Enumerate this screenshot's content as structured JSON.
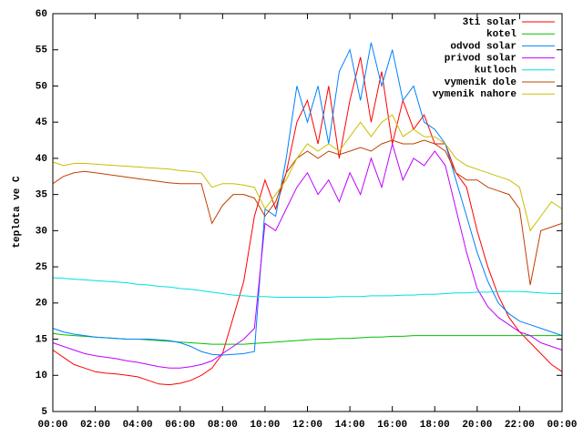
{
  "chart_data": {
    "type": "line",
    "ylabel": "teplota ve C",
    "xlim": [
      0,
      24
    ],
    "xticks": [
      {
        "value": 0,
        "label": "00:00"
      },
      {
        "value": 2,
        "label": "02:00"
      },
      {
        "value": 4,
        "label": "04:00"
      },
      {
        "value": 6,
        "label": "06:00"
      },
      {
        "value": 8,
        "label": "08:00"
      },
      {
        "value": 10,
        "label": "10:00"
      },
      {
        "value": 12,
        "label": "12:00"
      },
      {
        "value": 14,
        "label": "14:00"
      },
      {
        "value": 16,
        "label": "16:00"
      },
      {
        "value": 18,
        "label": "18:00"
      },
      {
        "value": 20,
        "label": "20:00"
      },
      {
        "value": 22,
        "label": "22:00"
      },
      {
        "value": 24,
        "label": "00:00"
      }
    ],
    "ylim": [
      5,
      60
    ],
    "yticks": [
      5,
      10,
      15,
      20,
      25,
      30,
      35,
      40,
      45,
      50,
      55,
      60
    ],
    "legend": "top-right",
    "x": [
      0,
      0.5,
      1,
      1.5,
      2,
      2.5,
      3,
      3.5,
      4,
      4.5,
      5,
      5.5,
      6,
      6.5,
      7,
      7.5,
      8,
      8.5,
      9,
      9.5,
      10,
      10.5,
      11,
      11.5,
      12,
      12.5,
      13,
      13.5,
      14,
      14.5,
      15,
      15.5,
      16,
      16.5,
      17,
      17.5,
      18,
      18.5,
      19,
      19.5,
      20,
      20.5,
      21,
      21.5,
      22,
      22.5,
      23,
      23.5,
      24
    ],
    "series": [
      {
        "name": "3ti solar",
        "color": "#ff0000",
        "values": [
          13.5,
          12.5,
          11.5,
          11,
          10.5,
          10.3,
          10.2,
          10,
          9.8,
          9.3,
          8.8,
          8.7,
          8.9,
          9.3,
          10,
          11,
          13,
          18,
          23,
          32,
          37,
          33,
          38,
          45,
          48,
          42,
          50,
          40,
          48,
          54,
          45,
          52,
          42,
          48,
          44,
          46,
          42,
          42,
          38,
          36,
          30,
          25,
          21,
          18,
          16,
          14.5,
          13,
          11.5,
          10.5
        ]
      },
      {
        "name": "kotel",
        "color": "#00c000",
        "values": [
          15.8,
          15.6,
          15.5,
          15.4,
          15.3,
          15.2,
          15.1,
          15,
          15,
          14.9,
          14.8,
          14.7,
          14.6,
          14.5,
          14.4,
          14.3,
          14.3,
          14.3,
          14.3,
          14.4,
          14.5,
          14.6,
          14.7,
          14.8,
          14.9,
          15,
          15,
          15.1,
          15.1,
          15.2,
          15.3,
          15.3,
          15.4,
          15.4,
          15.5,
          15.5,
          15.5,
          15.5,
          15.5,
          15.5,
          15.5,
          15.5,
          15.5,
          15.5,
          15.5,
          15.5,
          15.5,
          15.5,
          15.5
        ]
      },
      {
        "name": "odvod solar",
        "color": "#0080ff",
        "values": [
          16.5,
          16,
          15.7,
          15.5,
          15.3,
          15.2,
          15.1,
          15,
          15,
          15,
          14.9,
          14.8,
          14.5,
          14,
          13.3,
          12.9,
          12.8,
          12.9,
          13,
          13.3,
          33,
          32,
          40,
          50,
          45,
          50,
          42,
          52,
          55,
          48,
          56,
          50,
          55,
          48,
          50,
          45,
          44,
          42,
          37,
          32,
          27,
          23,
          20,
          18.5,
          17.5,
          17,
          16.5,
          16,
          15.5
        ]
      },
      {
        "name": "privod solar",
        "color": "#c000ff",
        "values": [
          14.5,
          14,
          13.5,
          13,
          12.7,
          12.5,
          12.3,
          12,
          11.8,
          11.5,
          11.2,
          11,
          11,
          11.2,
          11.5,
          12,
          13,
          14,
          15,
          16.5,
          31,
          30,
          33,
          36,
          38,
          35,
          37,
          34,
          38,
          35,
          40,
          36,
          42,
          37,
          40,
          39,
          41,
          39,
          33,
          27,
          22,
          19.5,
          18,
          17,
          16,
          15.5,
          14.5,
          14,
          13.5
        ]
      },
      {
        "name": "kutloch",
        "color": "#00e0e0",
        "values": [
          23.5,
          23.4,
          23.3,
          23.2,
          23.1,
          23,
          22.9,
          22.8,
          22.6,
          22.5,
          22.3,
          22.2,
          22,
          21.9,
          21.7,
          21.5,
          21.3,
          21.1,
          21,
          20.9,
          20.9,
          20.8,
          20.8,
          20.8,
          20.8,
          20.8,
          20.8,
          20.9,
          20.9,
          20.9,
          21,
          21,
          21,
          21.1,
          21.1,
          21.2,
          21.2,
          21.3,
          21.4,
          21.4,
          21.5,
          21.5,
          21.6,
          21.6,
          21.6,
          21.5,
          21.4,
          21.3,
          21.3
        ]
      },
      {
        "name": "vymenik dole",
        "color": "#c04000",
        "values": [
          36.5,
          37.5,
          38,
          38.2,
          38,
          37.8,
          37.6,
          37.4,
          37.2,
          37,
          36.8,
          36.6,
          36.5,
          36.5,
          36.5,
          31,
          33.5,
          35,
          35,
          34.5,
          32,
          34,
          38,
          40,
          41,
          40,
          41,
          40.5,
          41,
          41.5,
          41,
          42,
          42.5,
          42,
          42,
          42.5,
          42,
          41,
          38,
          37,
          37,
          36,
          35.5,
          35,
          33,
          22.5,
          30,
          30.5,
          31
        ]
      },
      {
        "name": "vymenik nahore",
        "color": "#c8c000",
        "values": [
          39.5,
          39,
          39.3,
          39.3,
          39.2,
          39.1,
          39,
          38.9,
          38.8,
          38.7,
          38.6,
          38.5,
          38.3,
          38.2,
          38,
          36,
          36.5,
          36.5,
          36.3,
          36,
          33,
          35,
          37,
          40,
          42,
          41,
          42,
          41,
          43,
          45,
          43,
          45,
          46,
          43,
          44,
          43,
          43,
          42,
          40,
          39,
          38.5,
          38,
          37.5,
          37,
          36,
          30,
          32,
          34,
          33
        ]
      }
    ]
  }
}
